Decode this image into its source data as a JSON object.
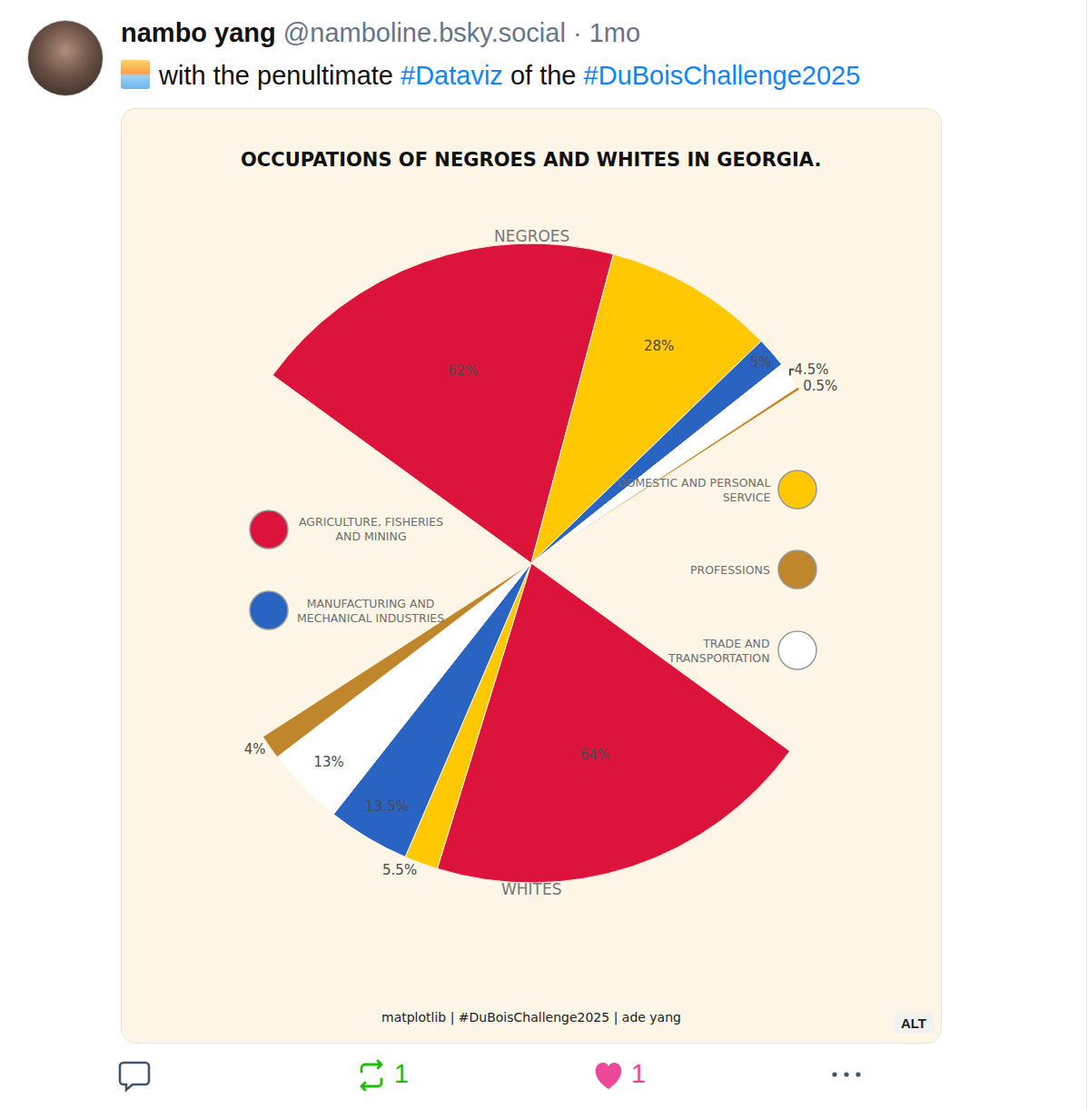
{
  "post": {
    "author": "nambo yang",
    "handle": "@namboline.bsky.social",
    "meta": "· 1mo",
    "text": "with the penultimate #Dataviz of the #DuBoisChallenge2025",
    "reposts": 1,
    "likes": 1,
    "badge": "ALT"
  },
  "chart_data": {
    "type": "pie",
    "title": "OCCUPATIONS OF NEGROES AND WHITES IN GEORGIA.",
    "caption": "matplotlib | #DuBoisChallenge2025 | ade yang",
    "categories": [
      "AGRICULTURE, FISHERIES AND MINING",
      "DOMESTIC AND PERSONAL SERVICE",
      "MANUFACTURING AND MECHANICAL INDUSTRIES",
      "TRADE AND TRANSPORTATION",
      "PROFESSIONS"
    ],
    "colors": [
      "#dc143c",
      "#ffc800",
      "#2a64c2",
      "#ffffff",
      "#c0862c"
    ],
    "series": [
      {
        "name": "NEGROES",
        "values": [
          62,
          28,
          5,
          4.5,
          0.5
        ],
        "value_labels": [
          "62%",
          "28%",
          "5%",
          "4.5%",
          "0.5%"
        ]
      },
      {
        "name": "WHITES",
        "values": [
          64,
          5.5,
          13.5,
          13,
          4
        ],
        "value_labels": [
          "64%",
          "5.5%",
          "13.5%",
          "13%",
          "4%"
        ]
      }
    ],
    "data_labels": true
  }
}
